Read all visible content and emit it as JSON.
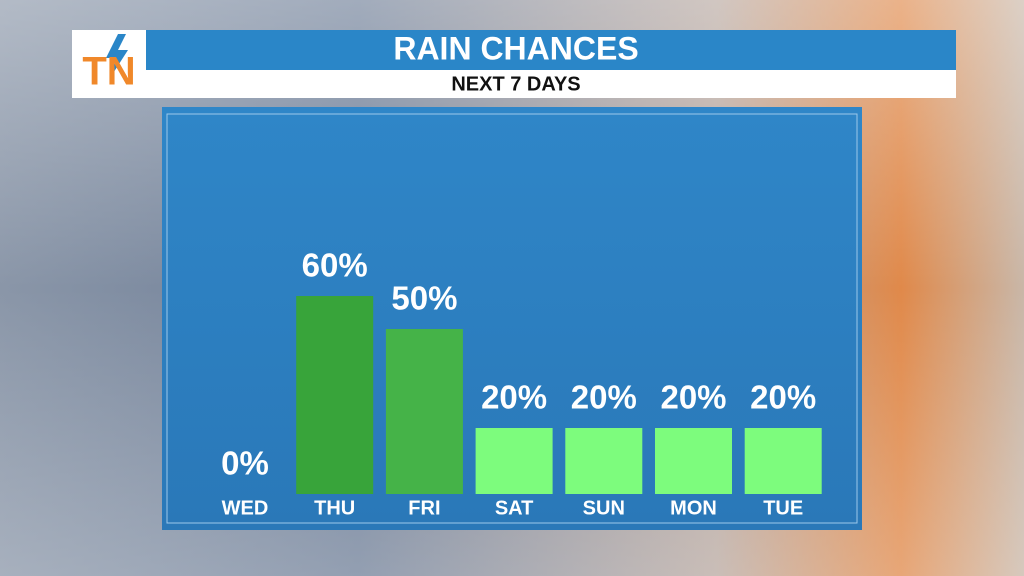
{
  "logo": "TN",
  "chart_data": {
    "type": "bar",
    "title": "RAIN CHANCES",
    "subtitle": "NEXT 7 DAYS",
    "categories": [
      "WED",
      "THU",
      "FRI",
      "SAT",
      "SUN",
      "MON",
      "TUE"
    ],
    "values": [
      0,
      60,
      50,
      20,
      20,
      20,
      20
    ],
    "value_labels": [
      "0%",
      "60%",
      "50%",
      "20%",
      "20%",
      "20%",
      "20%"
    ],
    "colors": [
      "#7dfc7d",
      "#38a43a",
      "#45b348",
      "#7dfc7d",
      "#7dfc7d",
      "#7dfc7d",
      "#7dfc7d"
    ]
  }
}
